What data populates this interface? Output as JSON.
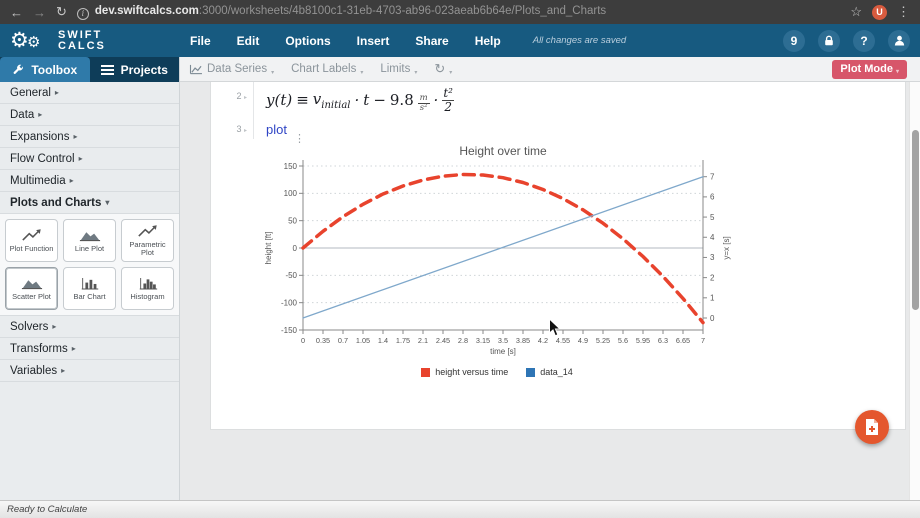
{
  "browser": {
    "url_host": "dev.swiftcalcs.com",
    "url_path": ":3000/worksheets/4b8100c1-31eb-4703-ab96-023aeab6b64e/Plots_and_Charts",
    "icons": {
      "back": "←",
      "forward": "→",
      "reload": "↻",
      "info": "i",
      "star": "☆",
      "menu": "⋮"
    },
    "profile_letter": "U"
  },
  "header": {
    "brand_line1": "Swift",
    "brand_line2": "Calcs",
    "menus": [
      "File",
      "Edit",
      "Options",
      "Insert",
      "Share",
      "Help"
    ],
    "saved_status": "All changes are saved",
    "badge_count": "9",
    "help_label": "?"
  },
  "toolbar": {
    "tabs": [
      "Data Series",
      "Chart Labels",
      "Limits"
    ],
    "plot_mode_label": "Plot Mode"
  },
  "sidebar": {
    "tab_toolbox": "Toolbox",
    "tab_projects": "Projects",
    "sections_top": [
      "General",
      "Data",
      "Expansions",
      "Flow Control",
      "Multimedia"
    ],
    "section_expanded": "Plots and Charts",
    "tools": [
      "Plot Function",
      "Line Plot",
      "Parametric Plot",
      "Scatter Plot",
      "Bar Chart",
      "Histogram"
    ],
    "sections_bottom": [
      "Solvers",
      "Transforms",
      "Variables"
    ]
  },
  "icons": {
    "caret_collapsed": "▸",
    "caret_expanded": "▾",
    "caret_small": "▾",
    "ellipsis_v": "⋮",
    "gear": "⚙"
  },
  "worksheet": {
    "line2_number": "2",
    "line3_number": "3",
    "plot_command": "plot",
    "equation": {
      "lhs": "y(t)",
      "equiv": "≡",
      "var": "v",
      "var_sub": "initial",
      "mult1": "·",
      "t": "t",
      "minus": "−",
      "coeff": "9.8",
      "unit_num": "m",
      "unit_den": "s²",
      "mult2": "·",
      "num": "t²",
      "den": "2"
    }
  },
  "chart_data": {
    "type": "line",
    "title": "Height over time",
    "xlabel": "time [s]",
    "ylabel_left": "height [ft]",
    "ylabel_right": "y=x [s]",
    "xlim": [
      0,
      7
    ],
    "ylim_left": [
      -150,
      150
    ],
    "ylim_right": [
      0,
      7
    ],
    "x_ticks": [
      0,
      0.35,
      0.7,
      1.05,
      1.4,
      1.75,
      2.1,
      2.45,
      2.8,
      3.15,
      3.5,
      3.85,
      4.2,
      4.55,
      4.9,
      5.25,
      5.6,
      5.95,
      6.3,
      6.65,
      7
    ],
    "y_ticks_left": [
      150,
      100,
      50,
      0,
      -50,
      -100,
      -150
    ],
    "y_ticks_right": [
      0,
      1,
      2,
      3,
      4,
      5,
      6,
      7
    ],
    "grid": "dotted-horizontal",
    "legend_position": "bottom",
    "series": [
      {
        "name": "height versus time",
        "axis": "left",
        "style": "dashed",
        "color": "#e8432d",
        "legend_color": "#e8432d",
        "width": 3.5,
        "points": [
          [
            0,
            0
          ],
          [
            0.35,
            30.6
          ],
          [
            0.7,
            57.2
          ],
          [
            1.05,
            79.9
          ],
          [
            1.4,
            98.7
          ],
          [
            1.75,
            113.5
          ],
          [
            2.1,
            124.4
          ],
          [
            2.45,
            131.4
          ],
          [
            2.8,
            134.4
          ],
          [
            3.15,
            133.5
          ],
          [
            3.5,
            128.6
          ],
          [
            3.85,
            119.9
          ],
          [
            4.2,
            107.1
          ],
          [
            4.55,
            90.4
          ],
          [
            4.9,
            69.8
          ],
          [
            5.25,
            45.3
          ],
          [
            5.6,
            16.8
          ],
          [
            5.95,
            -15.6
          ],
          [
            6.3,
            -52.0
          ],
          [
            6.65,
            -92.3
          ],
          [
            7,
            -136.4
          ]
        ]
      },
      {
        "name": "data_14",
        "axis": "right",
        "style": "solid",
        "color": "#7fa8cb",
        "legend_color": "#2e75b5",
        "width": 1.3,
        "points": [
          [
            0,
            0
          ],
          [
            7,
            7
          ]
        ]
      }
    ]
  },
  "status_bar": {
    "text": "Ready to Calculate"
  }
}
